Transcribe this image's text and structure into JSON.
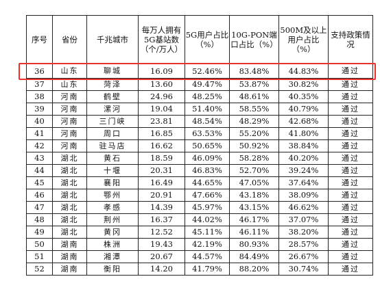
{
  "table": {
    "headers": [
      "序号",
      "省份",
      "千兆城市",
      "每万人拥有5G基站数（个/万人）",
      "5G用户占比（%）",
      "10G-PON端口占比（%）",
      "500M及以上用户占比（%）",
      "支持政策情况"
    ],
    "rows": [
      [
        "36",
        "山东",
        "聊城",
        "16.09",
        "52.46%",
        "83.48%",
        "44.83%",
        "通过"
      ],
      [
        "37",
        "山东",
        "菏泽",
        "13.60",
        "49.47%",
        "53.87%",
        "30.82%",
        "通过"
      ],
      [
        "38",
        "河南",
        "鹤壁",
        "24.96",
        "48.25%",
        "48.61%",
        "40.35%",
        "通过"
      ],
      [
        "39",
        "河南",
        "漯河",
        "19.04",
        "51.40%",
        "58.55%",
        "40.79%",
        "通过"
      ],
      [
        "40",
        "河南",
        "三门峡",
        "23.81",
        "48.54%",
        "48.29%",
        "42.68%",
        "通过"
      ],
      [
        "41",
        "河南",
        "周口",
        "16.85",
        "63.53%",
        "55.20%",
        "41.80%",
        "通过"
      ],
      [
        "42",
        "河南",
        "驻马店",
        "16.62",
        "50.65%",
        "50.92%",
        "38.84%",
        "通过"
      ],
      [
        "43",
        "湖北",
        "黄石",
        "18.59",
        "46.09%",
        "58.28%",
        "40.20%",
        "通过"
      ],
      [
        "44",
        "湖北",
        "十堰",
        "20.31",
        "46.83%",
        "52.70%",
        "39.24%",
        "通过"
      ],
      [
        "45",
        "湖北",
        "襄阳",
        "16.49",
        "44.65%",
        "47.05%",
        "37.64%",
        "通过"
      ],
      [
        "46",
        "湖北",
        "鄂州",
        "20.91",
        "47.66%",
        "43.18%",
        "38.09%",
        "通过"
      ],
      [
        "47",
        "湖北",
        "孝感",
        "14.39",
        "45.97%",
        "43.15%",
        "46.62%",
        "通过"
      ],
      [
        "48",
        "湖北",
        "荆州",
        "16.37",
        "44.02%",
        "46.17%",
        "37.07%",
        "通过"
      ],
      [
        "49",
        "湖北",
        "黄冈",
        "12.52",
        "45.11%",
        "46.11%",
        "38.20%",
        "通过"
      ],
      [
        "50",
        "湖南",
        "株洲",
        "19.43",
        "42.19%",
        "80.93%",
        "28.57%",
        "通过"
      ],
      [
        "51",
        "湖南",
        "湘潭",
        "20.67",
        "44.57%",
        "84.49%",
        "26.67%",
        "通过"
      ],
      [
        "52",
        "湖南",
        "衡阳",
        "14.20",
        "41.79%",
        "88.20%",
        "30.74%",
        "通过"
      ]
    ]
  },
  "colors": {
    "highlight_border": "#e8322b",
    "grid": "#222222"
  }
}
